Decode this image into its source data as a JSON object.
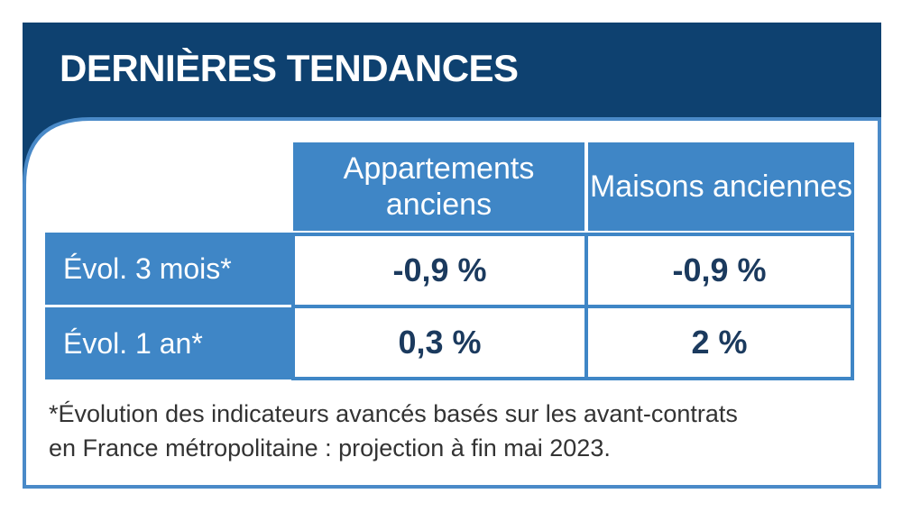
{
  "header": {
    "title": "DERNIÈRES TENDANCES"
  },
  "table": {
    "columns": [
      "Appartements anciens",
      "Maisons anciennes"
    ],
    "rows": [
      [
        "Évol. 3 mois*",
        "-0,9 %",
        "-0,9 %"
      ],
      [
        "Évol. 1 an*",
        "0,3 %",
        "2 %"
      ]
    ]
  },
  "footnote": [
    "*Évolution des indicateurs avancés basés sur les avant-contrats",
    "en France métropolitaine : projection à fin mai 2023."
  ]
}
